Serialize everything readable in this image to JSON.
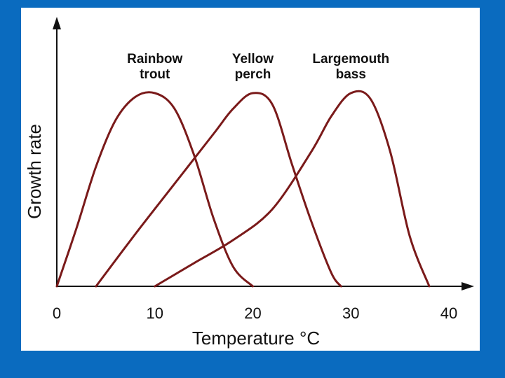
{
  "colors": {
    "background": "#0a6bbf",
    "panel": "#ffffff",
    "curve": "#7a1a1a",
    "axis": "#111111"
  },
  "chart_data": {
    "type": "line",
    "title": "",
    "xlabel": "Temperature °C",
    "ylabel": "Growth rate",
    "xlim": [
      0,
      40
    ],
    "ylim": [
      0,
      100
    ],
    "x_ticks": [
      "0",
      "10",
      "20",
      "30",
      "40"
    ],
    "y_ticks": [],
    "grid": false,
    "legend": "labels above curves",
    "series": [
      {
        "name": "Rainbow trout",
        "label_lines": [
          "Rainbow",
          "trout"
        ],
        "x": [
          0,
          2,
          4,
          6,
          8,
          10,
          12,
          14,
          16,
          18,
          20
        ],
        "y": [
          0,
          30,
          62,
          86,
          98,
          100,
          92,
          68,
          35,
          10,
          0
        ]
      },
      {
        "name": "Yellow perch",
        "label_lines": [
          "Yellow",
          "perch"
        ],
        "x": [
          4,
          8,
          12,
          16,
          18,
          20,
          22,
          24,
          26,
          28,
          29
        ],
        "y": [
          0,
          27,
          53,
          79,
          92,
          100,
          94,
          63,
          33,
          7,
          0
        ]
      },
      {
        "name": "Largemouth bass",
        "label_lines": [
          "Largemouth",
          "bass"
        ],
        "x": [
          10,
          14,
          18,
          22,
          26,
          28,
          30,
          32,
          34,
          36,
          38
        ],
        "y": [
          0,
          12,
          24,
          40,
          70,
          88,
          100,
          97,
          70,
          26,
          0
        ]
      }
    ]
  }
}
